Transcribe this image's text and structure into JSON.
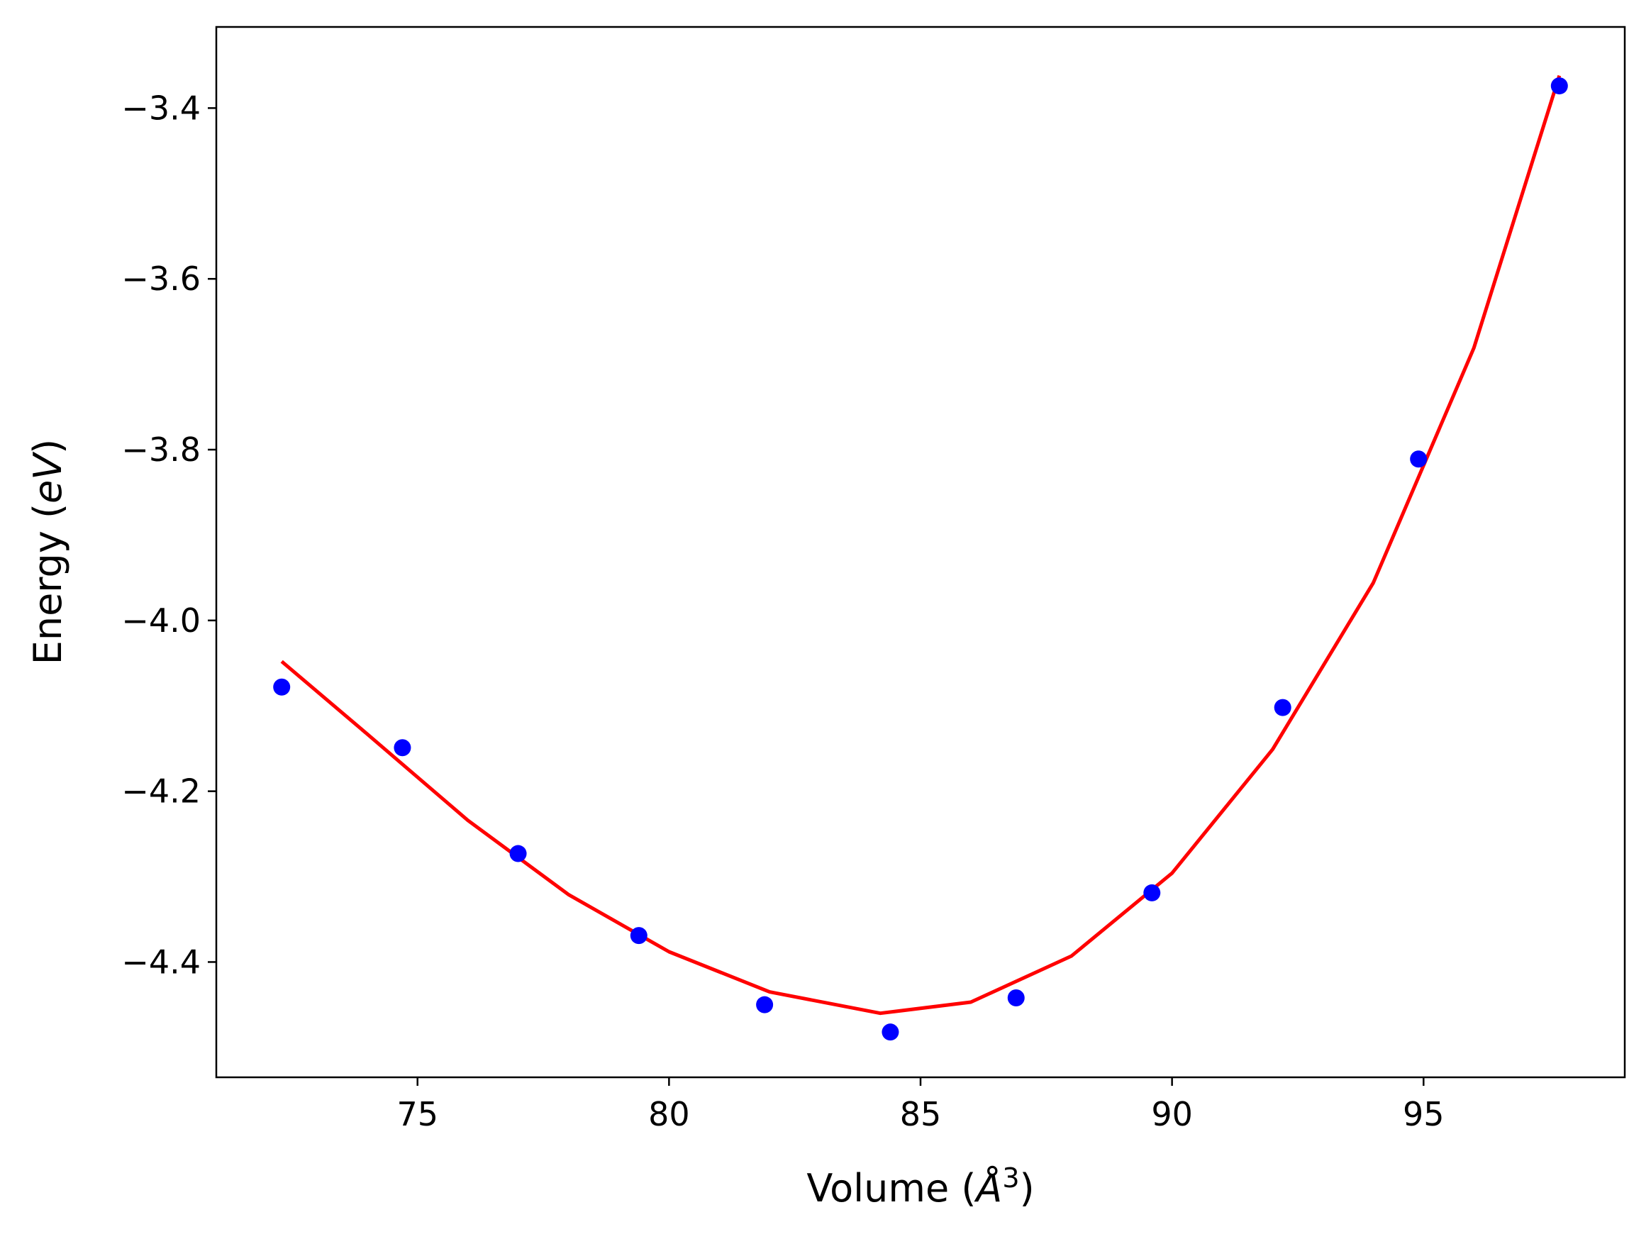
{
  "chart_data": {
    "type": "scatter",
    "title": "",
    "xlabel": "Volume",
    "xlabel_unit": "Å",
    "xlabel_unit_power": "3",
    "ylabel": "Energy",
    "ylabel_unit": "eV",
    "xlim": [
      71,
      99
    ],
    "ylim": [
      -4.535,
      -3.305
    ],
    "xticks": [
      75,
      80,
      85,
      90,
      95
    ],
    "yticks": [
      -4.4,
      -4.2,
      -4.0,
      -3.8,
      -3.6,
      -3.4
    ],
    "grid": false,
    "legend": "none",
    "series": [
      {
        "kind": "points",
        "color": "#0000ff",
        "x": [
          72.3,
          74.7,
          77.0,
          79.4,
          81.9,
          84.4,
          86.9,
          89.6,
          92.2,
          94.9,
          97.7
        ],
        "y": [
          -4.078,
          -4.149,
          -4.273,
          -4.369,
          -4.45,
          -4.482,
          -4.442,
          -4.319,
          -4.102,
          -3.811,
          -3.374
        ]
      },
      {
        "kind": "fit-curve",
        "color": "#ff0000",
        "x": [
          72.3,
          74.0,
          76.0,
          78.0,
          80.0,
          82.0,
          84.2,
          86.0,
          88.0,
          90.0,
          92.0,
          94.0,
          96.0,
          97.7
        ],
        "y": [
          -4.048,
          -4.133,
          -4.234,
          -4.321,
          -4.388,
          -4.435,
          -4.46,
          -4.447,
          -4.393,
          -4.296,
          -4.151,
          -3.956,
          -3.681,
          -3.362
        ]
      }
    ]
  }
}
